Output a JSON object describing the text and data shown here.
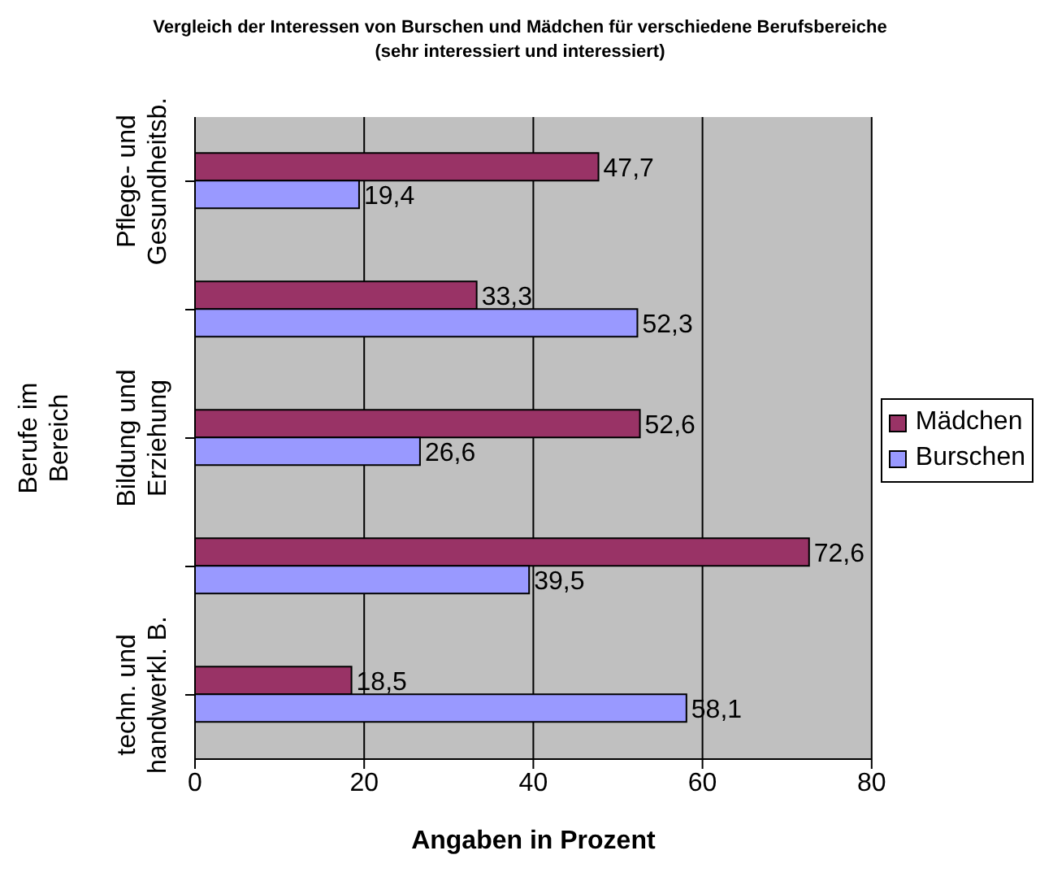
{
  "chart_data": {
    "type": "bar",
    "orientation": "horizontal",
    "title": "Vergleich der Interessen von Burschen und Mädchen für verschiedene Berufsbereiche (sehr interessiert und interessiert)",
    "xlabel": "Angaben in Prozent",
    "ylabel": "Berufe im Bereich",
    "categories": [
      "Pflege- und Gesundheitsb.",
      null,
      "Bildung und Erziehung",
      null,
      "techn. und handwerkl. B."
    ],
    "series": [
      {
        "name": "Mädchen",
        "color": "#993366",
        "values": [
          47.7,
          33.3,
          52.6,
          72.6,
          18.5
        ],
        "value_labels": [
          "47,7",
          "33,3",
          "52,6",
          "72,6",
          "18,5"
        ]
      },
      {
        "name": "Burschen",
        "color": "#9999ff",
        "values": [
          19.4,
          52.3,
          26.6,
          39.5,
          58.1
        ],
        "value_labels": [
          "19,4",
          "52,3",
          "26,6",
          "39,5",
          "58,1"
        ]
      }
    ],
    "xlim": [
      0,
      80
    ],
    "xticks": [
      0,
      20,
      40,
      60,
      80
    ],
    "grid": "x",
    "legend": "right"
  }
}
